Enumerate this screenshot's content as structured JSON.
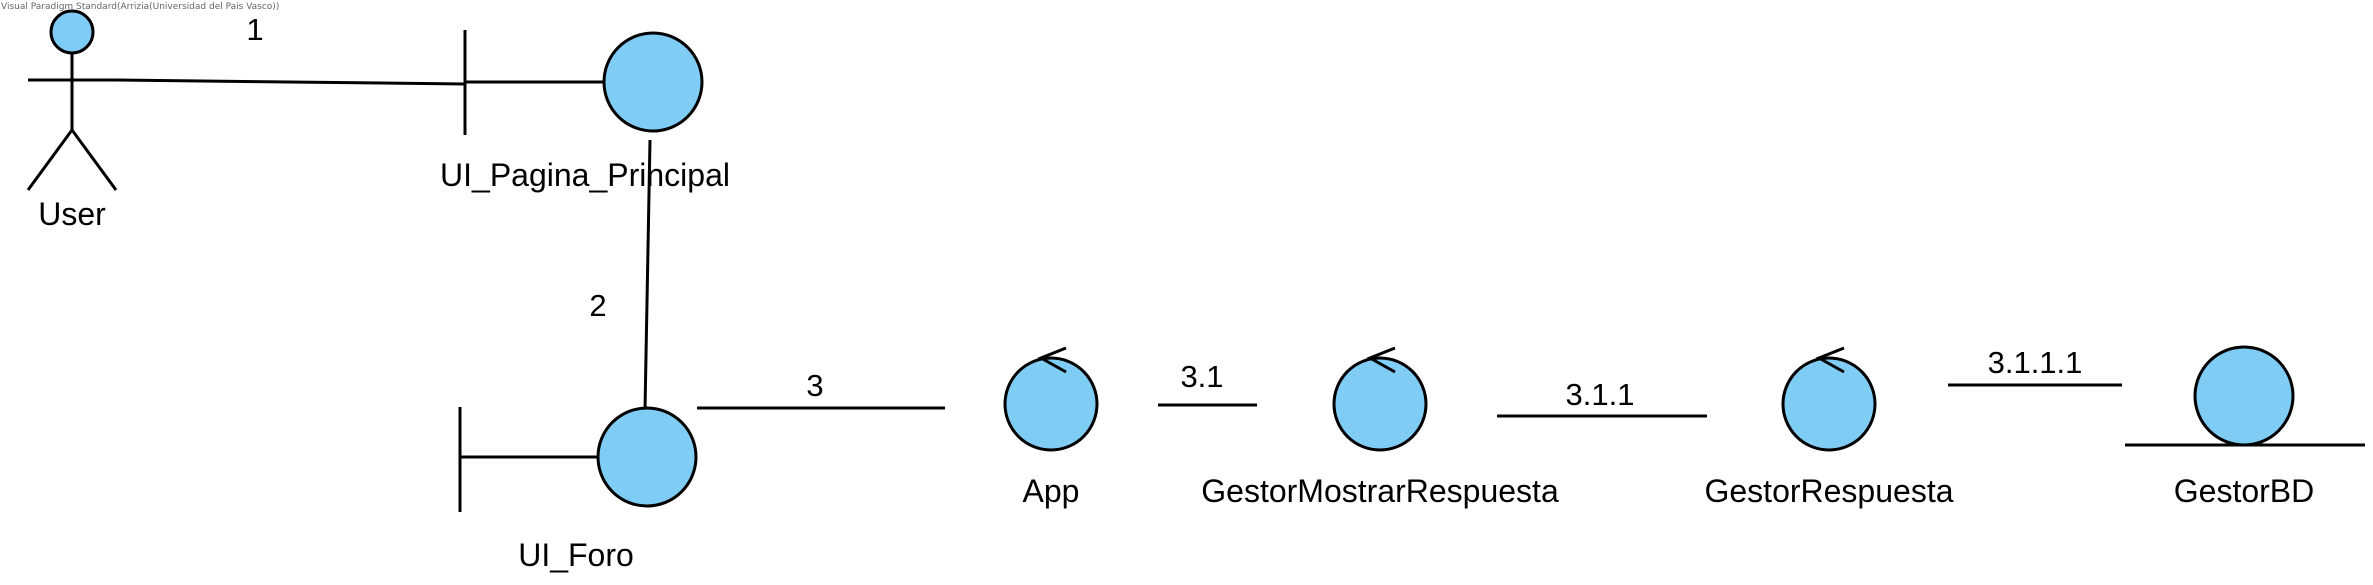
{
  "watermark": "Visual Paradigm Standard(Arrizia(Universidad del Pais Vasco))",
  "colors": {
    "element_fill": "#7fcdf5",
    "line": "#000000"
  },
  "elements": {
    "user": {
      "label": "User",
      "kind": "actor"
    },
    "ui_pagina_principal": {
      "label": "UI_Pagina_Principal",
      "kind": "boundary"
    },
    "ui_foro": {
      "label": "UI_Foro",
      "kind": "boundary"
    },
    "app": {
      "label": "App",
      "kind": "control"
    },
    "gestor_mostrar_respuesta": {
      "label": "GestorMostrarRespuesta",
      "kind": "control"
    },
    "gestor_respuesta": {
      "label": "GestorRespuesta",
      "kind": "control"
    },
    "gestor_bd": {
      "label": "GestorBD",
      "kind": "entity"
    }
  },
  "links": {
    "l1": {
      "label": "1",
      "from": "User",
      "to": "UI_Pagina_Principal"
    },
    "l2": {
      "label": "2",
      "from": "UI_Pagina_Principal",
      "to": "UI_Foro"
    },
    "l3": {
      "label": "3",
      "from": "UI_Foro",
      "to": "App"
    },
    "l31": {
      "label": "3.1",
      "from": "App",
      "to": "GestorMostrarRespuesta"
    },
    "l311": {
      "label": "3.1.1",
      "from": "GestorMostrarRespuesta",
      "to": "GestorRespuesta"
    },
    "l3111": {
      "label": "3.1.1.1",
      "from": "GestorRespuesta",
      "to": "GestorBD"
    }
  }
}
